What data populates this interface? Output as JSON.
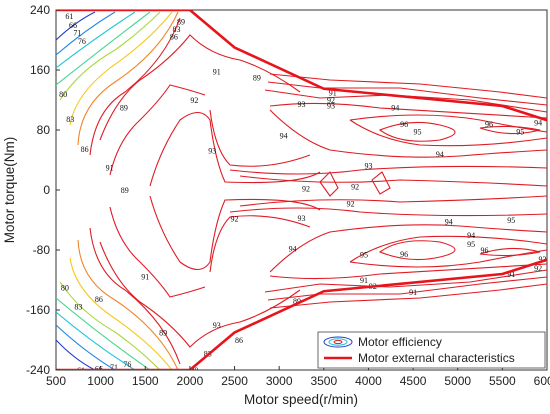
{
  "chart_data": {
    "type": "contour",
    "xlabel": "Motor speed(r/min)",
    "ylabel": "Motor torque(Nm)",
    "xlim": [
      500,
      6000
    ],
    "ylim": [
      -240,
      240
    ],
    "x_ticks": [
      500,
      1000,
      1500,
      2000,
      2500,
      3000,
      3500,
      4000,
      4500,
      5000,
      5500,
      6000
    ],
    "y_ticks": [
      240,
      160,
      80,
      0,
      -80,
      -160,
      -240
    ],
    "grid": false,
    "legend_position": "bottom-right",
    "legend": [
      "Motor efficiency",
      "Motor external characteristics"
    ],
    "contour_levels": [
      61,
      66,
      71,
      76,
      80,
      83,
      86,
      89,
      91,
      92,
      93,
      94,
      95,
      96
    ],
    "external_characteristic": {
      "color": "#e8141c",
      "x": [
        500,
        2000,
        2500,
        3500,
        5500,
        6000
      ],
      "y_positive": [
        240,
        240,
        190,
        135,
        112,
        93
      ],
      "y_negative": [
        -240,
        -240,
        -190,
        -135,
        -112,
        -93
      ]
    },
    "contour_labels": [
      {
        "level": "61",
        "x": 650,
        "y": 232
      },
      {
        "level": "66",
        "x": 690,
        "y": 220
      },
      {
        "level": "71",
        "x": 740,
        "y": 210
      },
      {
        "level": "76",
        "x": 790,
        "y": 199
      },
      {
        "level": "80",
        "x": 580,
        "y": 128
      },
      {
        "level": "83",
        "x": 660,
        "y": 95
      },
      {
        "level": "86",
        "x": 820,
        "y": 55
      },
      {
        "level": "89",
        "x": 1260,
        "y": 110
      },
      {
        "level": "91",
        "x": 1100,
        "y": 30
      },
      {
        "level": "89",
        "x": 1270,
        "y": 0
      },
      {
        "level": "91",
        "x": 1500,
        "y": -115
      },
      {
        "level": "80",
        "x": 600,
        "y": -130
      },
      {
        "level": "83",
        "x": 750,
        "y": -155
      },
      {
        "level": "86",
        "x": 980,
        "y": -145
      },
      {
        "level": "89",
        "x": 1700,
        "y": -190
      },
      {
        "level": "76",
        "x": 1300,
        "y": -232
      },
      {
        "level": "71",
        "x": 1150,
        "y": -236
      },
      {
        "level": "66",
        "x": 980,
        "y": -238
      },
      {
        "level": "61",
        "x": 780,
        "y": -240
      },
      {
        "level": "83",
        "x": 1850,
        "y": 215
      },
      {
        "level": "86",
        "x": 1820,
        "y": 205
      },
      {
        "level": "89",
        "x": 1900,
        "y": 225
      },
      {
        "level": "91",
        "x": 2300,
        "y": 158
      },
      {
        "level": "89",
        "x": 2750,
        "y": 150
      },
      {
        "level": "92",
        "x": 2050,
        "y": 120
      },
      {
        "level": "93",
        "x": 3250,
        "y": 115
      },
      {
        "level": "93",
        "x": 3580,
        "y": 113
      },
      {
        "level": "92",
        "x": 3580,
        "y": 120
      },
      {
        "level": "91",
        "x": 3600,
        "y": 130
      },
      {
        "level": "94",
        "x": 4300,
        "y": 110
      },
      {
        "level": "95",
        "x": 4550,
        "y": 78
      },
      {
        "level": "96",
        "x": 4400,
        "y": 88
      },
      {
        "level": "96",
        "x": 5350,
        "y": 88
      },
      {
        "level": "95",
        "x": 5700,
        "y": 78
      },
      {
        "level": "94",
        "x": 5900,
        "y": 90
      },
      {
        "level": "94",
        "x": 3050,
        "y": 73
      },
      {
        "level": "93",
        "x": 2250,
        "y": 53
      },
      {
        "level": "93",
        "x": 4000,
        "y": 33
      },
      {
        "level": "94",
        "x": 4800,
        "y": 48
      },
      {
        "level": "92",
        "x": 3850,
        "y": 5
      },
      {
        "level": "92",
        "x": 3300,
        "y": 2
      },
      {
        "level": "92",
        "x": 2500,
        "y": -38
      },
      {
        "level": "93",
        "x": 3250,
        "y": -37
      },
      {
        "level": "92",
        "x": 3800,
        "y": -18
      },
      {
        "level": "94",
        "x": 4900,
        "y": -42
      },
      {
        "level": "95",
        "x": 5150,
        "y": -72
      },
      {
        "level": "96",
        "x": 4400,
        "y": -85
      },
      {
        "level": "95",
        "x": 3950,
        "y": -86
      },
      {
        "level": "94",
        "x": 3150,
        "y": -78
      },
      {
        "level": "93",
        "x": 2300,
        "y": -180
      },
      {
        "level": "92",
        "x": 4050,
        "y": -128
      },
      {
        "level": "91",
        "x": 4500,
        "y": -136
      },
      {
        "level": "89",
        "x": 3200,
        "y": -148
      },
      {
        "level": "86",
        "x": 2550,
        "y": -200
      },
      {
        "level": "83",
        "x": 2200,
        "y": -218
      },
      {
        "level": "80",
        "x": 2050,
        "y": -240
      },
      {
        "level": "91",
        "x": 3950,
        "y": -120
      },
      {
        "level": "93",
        "x": 5950,
        "y": -92
      },
      {
        "level": "92",
        "x": 5900,
        "y": -104
      },
      {
        "level": "91",
        "x": 5600,
        "y": -112
      },
      {
        "level": "96",
        "x": 5300,
        "y": -80
      },
      {
        "level": "95",
        "x": 5600,
        "y": -40
      },
      {
        "level": "94",
        "x": 5150,
        "y": -60
      }
    ]
  }
}
